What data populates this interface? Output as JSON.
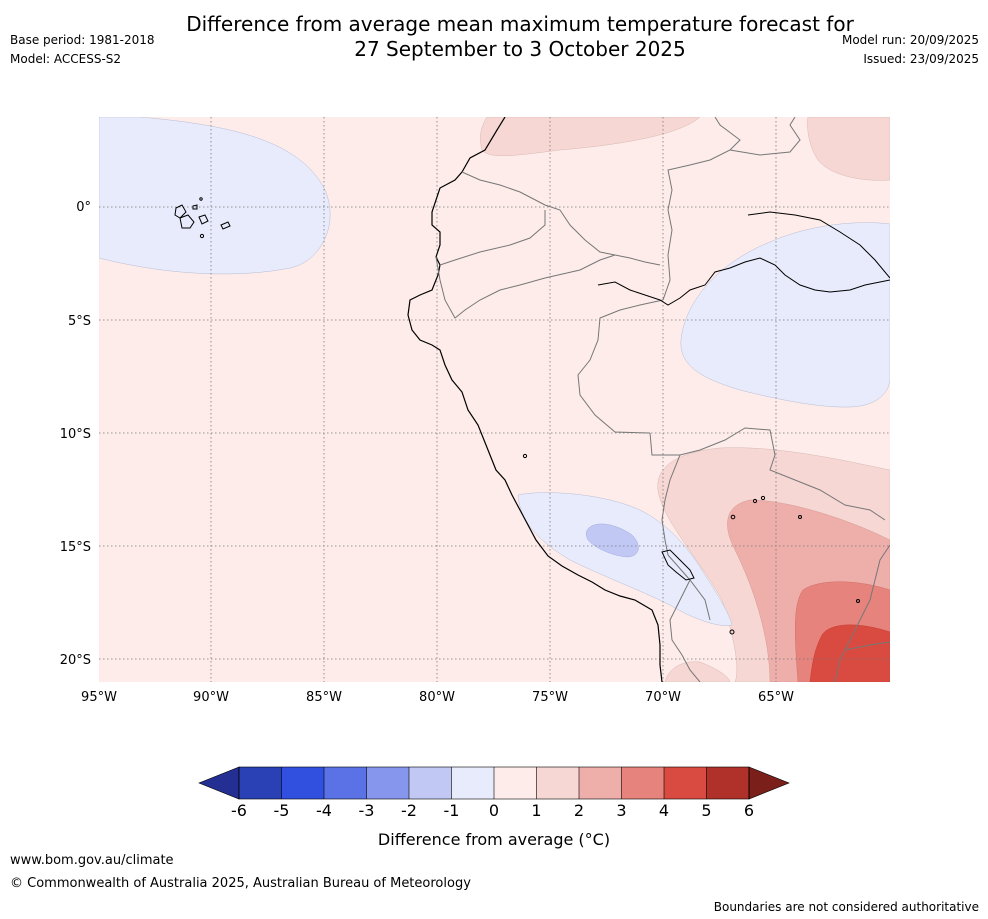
{
  "title": {
    "line1": "Difference from average mean maximum temperature forecast for",
    "line2": "27 September to 3 October 2025"
  },
  "meta": {
    "base_period": "Base period: 1981-2018",
    "model": "Model: ACCESS-S2",
    "model_run": "Model run: 20/09/2025",
    "issued": "Issued: 23/09/2025"
  },
  "map": {
    "lon_labels": [
      "95°W",
      "90°W",
      "85°W",
      "80°W",
      "75°W",
      "70°W",
      "65°W"
    ],
    "lat_labels": [
      "0°",
      "5°S",
      "10°S",
      "15°S",
      "20°S"
    ],
    "lon_range": [
      -95,
      -60
    ],
    "lat_range": [
      -21,
      4
    ]
  },
  "colorbar": {
    "ticks": [
      "-6",
      "-5",
      "-4",
      "-3",
      "-2",
      "-1",
      "0",
      "1",
      "2",
      "3",
      "4",
      "5",
      "6"
    ],
    "colors": [
      "#232f93",
      "#2a41b5",
      "#3150e0",
      "#5b72e6",
      "#8696ec",
      "#c1c8f4",
      "#e7ebfb",
      "#fdecea",
      "#f6d7d4",
      "#eeaeaa",
      "#e6837c",
      "#d94b40",
      "#b0302a",
      "#7a1f1a"
    ],
    "label": "Difference from average (°C)"
  },
  "footer": {
    "website": "www.bom.gov.au/climate",
    "copyright": "© Commonwealth of Australia 2025, Australian Bureau of Meteorology",
    "disclaimer": "Boundaries are not considered authoritative"
  }
}
